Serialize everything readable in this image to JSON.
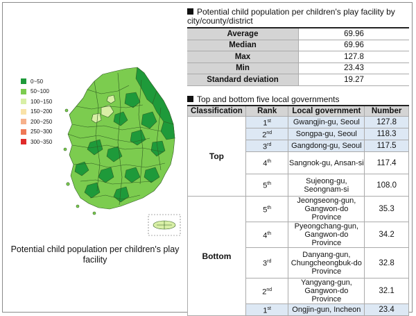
{
  "legend": [
    {
      "label": "0~50",
      "color": "#1e9a3a"
    },
    {
      "label": "50~100",
      "color": "#7ccc4f"
    },
    {
      "label": "100~150",
      "color": "#d8efa6"
    },
    {
      "label": "150~200",
      "color": "#f9e2a8"
    },
    {
      "label": "200~250",
      "color": "#f6b18c"
    },
    {
      "label": "250~300",
      "color": "#ef7856"
    },
    {
      "label": "300~350",
      "color": "#e02a2a"
    }
  ],
  "map_caption": "Potential child population per children's play facility",
  "stats_title": "Potential child population per children's play facility by city/county/district",
  "stats": [
    {
      "label": "Average",
      "value": "69.96"
    },
    {
      "label": "Median",
      "value": "69.96"
    },
    {
      "label": "Max",
      "value": "127.8"
    },
    {
      "label": "Min",
      "value": "23.43"
    },
    {
      "label": "Standard deviation",
      "value": "19.27"
    }
  ],
  "rank_title": "Top and bottom five local governments",
  "rank_headers": {
    "classification": "Classification",
    "rank": "Rank",
    "gov": "Local government",
    "number": "Number"
  },
  "top_label": "Top",
  "bottom_label": "Bottom",
  "top": [
    {
      "rank_num": "1",
      "rank_sup": "st",
      "gov": "Gwangjin-gu, Seoul",
      "number": "127.8"
    },
    {
      "rank_num": "2",
      "rank_sup": "nd",
      "gov": "Songpa-gu, Seoul",
      "number": "118.3"
    },
    {
      "rank_num": "3",
      "rank_sup": "rd",
      "gov": "Gangdong-gu, Seoul",
      "number": "117.5"
    },
    {
      "rank_num": "4",
      "rank_sup": "th",
      "gov": "Sangnok-gu, Ansan-si",
      "number": "117.4"
    },
    {
      "rank_num": "5",
      "rank_sup": "th",
      "gov": "Sujeong-gu, Seongnam-si",
      "number": "108.0"
    }
  ],
  "bottom": [
    {
      "rank_num": "5",
      "rank_sup": "th",
      "gov": "Jeongseong-gun, Gangwon-do Province",
      "number": "35.3"
    },
    {
      "rank_num": "4",
      "rank_sup": "th",
      "gov": "Pyeongchang-gun, Gangwon-do Province",
      "number": "34.2"
    },
    {
      "rank_num": "3",
      "rank_sup": "rd",
      "gov": "Danyang-gun, Chungcheongbuk-do Province",
      "number": "32.8"
    },
    {
      "rank_num": "2",
      "rank_sup": "nd",
      "gov": "Yangyang-gun, Gangwon-do Province",
      "number": "32.1"
    },
    {
      "rank_num": "1",
      "rank_sup": "st",
      "gov": "Ongjin-gun, Incheon",
      "number": "23.4"
    }
  ]
}
